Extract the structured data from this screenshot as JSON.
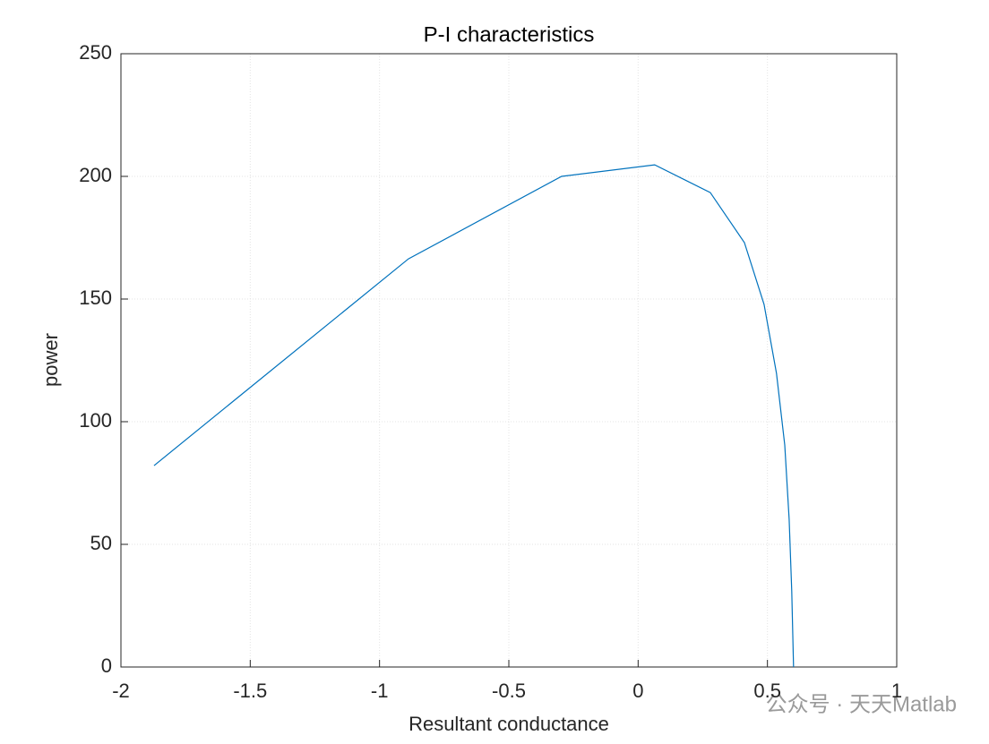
{
  "chart_data": {
    "type": "line",
    "title": "P-I characteristics",
    "x_label": "Resultant conductance",
    "y_label": "power",
    "x": [
      -1.872,
      -0.888,
      -0.296,
      0.064,
      0.279,
      0.411,
      0.487,
      0.535,
      0.567,
      0.584,
      0.594,
      0.601
    ],
    "series": [
      {
        "name": "power",
        "color": "#0072bd",
        "values": [
          82.1,
          166.4,
          200,
          204.7,
          193.4,
          173,
          147.8,
          119.7,
          90.5,
          60.2,
          31,
          0
        ]
      }
    ],
    "xlim": [
      -2,
      1
    ],
    "xticks": [
      -2,
      -1.5,
      -1,
      -0.5,
      0,
      0.5,
      1
    ],
    "ylim": [
      0,
      250
    ],
    "yticks": [
      0,
      50,
      100,
      150,
      200,
      250
    ],
    "grid": true
  },
  "watermark": "公众号 · 天天Matlab"
}
